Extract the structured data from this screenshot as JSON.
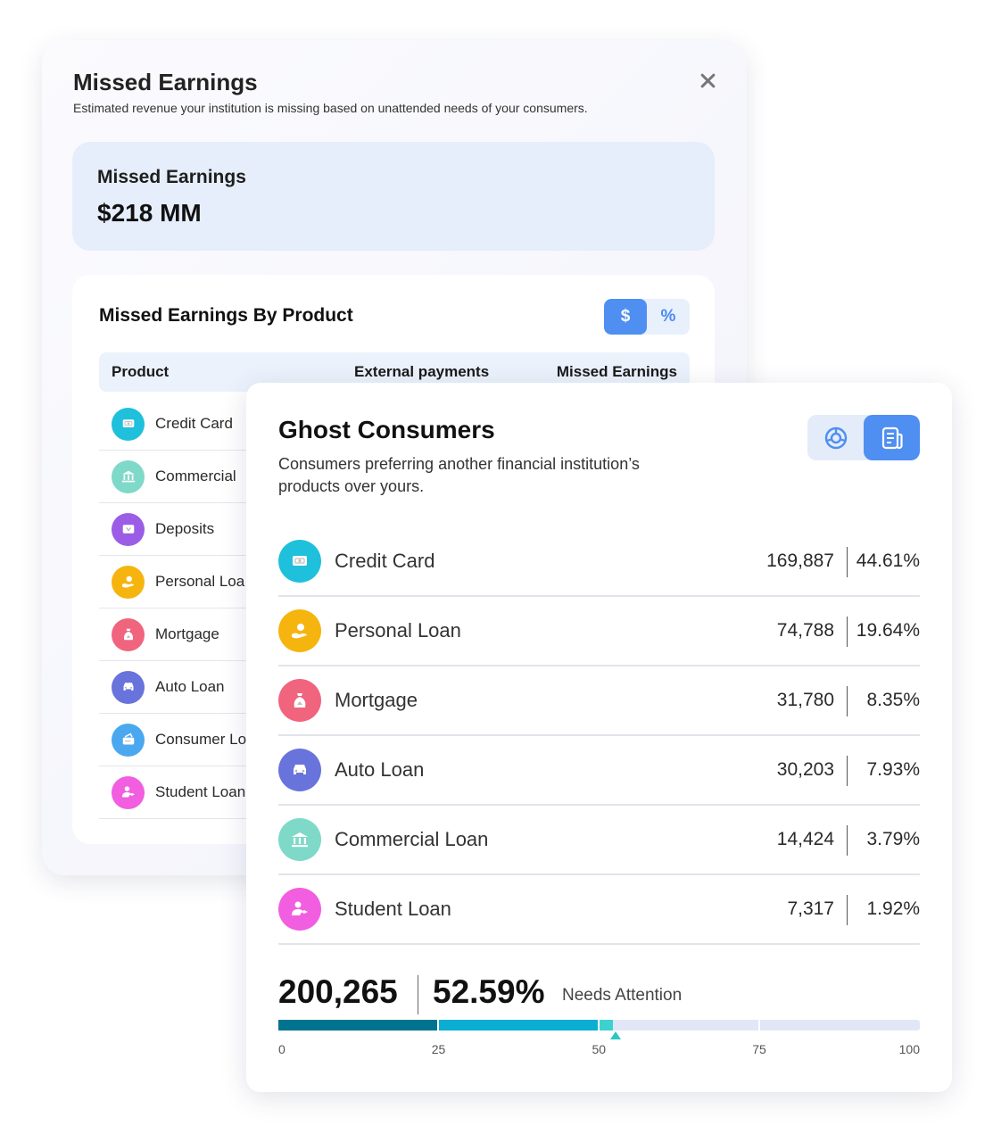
{
  "missed_panel": {
    "title": "Missed Earnings",
    "subtitle": "Estimated revenue your institution is missing based on unattended needs of your consumers.",
    "close_icon": "close-icon",
    "summary": {
      "label": "Missed Earnings",
      "value": "$218 MM"
    },
    "by_product": {
      "title": "Missed Earnings By Product",
      "toggle": {
        "dollar": "$",
        "percent": "%",
        "selected": "dollar"
      },
      "columns": [
        "Product",
        "External payments",
        "Missed Earnings"
      ],
      "rows": [
        {
          "label": "Credit Card",
          "icon": "credit-card-icon",
          "color": "#1fc0dc"
        },
        {
          "label": "Commercial",
          "icon": "bank-icon",
          "color": "#7ed9c8"
        },
        {
          "label": "Deposits",
          "icon": "deposits-icon",
          "color": "#9b5de5"
        },
        {
          "label": "Personal Loa",
          "icon": "personal-loan-icon",
          "color": "#f6b40e"
        },
        {
          "label": "Mortgage",
          "icon": "mortgage-icon",
          "color": "#f0647e"
        },
        {
          "label": "Auto Loan",
          "icon": "car-icon",
          "color": "#6873dc"
        },
        {
          "label": "Consumer Lo",
          "icon": "consumer-loan-icon",
          "color": "#4aa8f0"
        },
        {
          "label": "Student Loan",
          "icon": "student-loan-icon",
          "color": "#f25ee0"
        }
      ]
    }
  },
  "ghost_panel": {
    "title": "Ghost Consumers",
    "subtitle": "Consumers preferring another financial institution’s products over yours.",
    "view_toggle": {
      "options": [
        "chart-view-icon",
        "table-view-icon"
      ],
      "selected": "table-view-icon"
    },
    "rows": [
      {
        "label": "Credit Card",
        "count": "169,887",
        "pct": "44.61%",
        "icon": "credit-card-icon",
        "color": "#1fc0dc"
      },
      {
        "label": "Personal Loan",
        "count": "74,788",
        "pct": "19.64%",
        "icon": "personal-loan-icon",
        "color": "#f6b40e"
      },
      {
        "label": "Mortgage",
        "count": "31,780",
        "pct": "8.35%",
        "icon": "mortgage-icon",
        "color": "#f0647e"
      },
      {
        "label": "Auto Loan",
        "count": "30,203",
        "pct": "7.93%",
        "icon": "car-icon",
        "color": "#6873dc"
      },
      {
        "label": "Commercial Loan",
        "count": "14,424",
        "pct": "3.79%",
        "icon": "bank-icon",
        "color": "#7ed9c8"
      },
      {
        "label": "Student Loan",
        "count": "7,317",
        "pct": "1.92%",
        "icon": "student-loan-icon",
        "color": "#f25ee0"
      }
    ],
    "total": {
      "count": "200,265",
      "pct": "52.59%",
      "note": "Needs Attention"
    },
    "progress": {
      "value": 52.59,
      "scale_labels": [
        "0",
        "25",
        "50",
        "75",
        "100"
      ],
      "colors": [
        "#00738e",
        "#0aaed0",
        "#3dd2cf",
        "#e1e7f7"
      ]
    }
  }
}
